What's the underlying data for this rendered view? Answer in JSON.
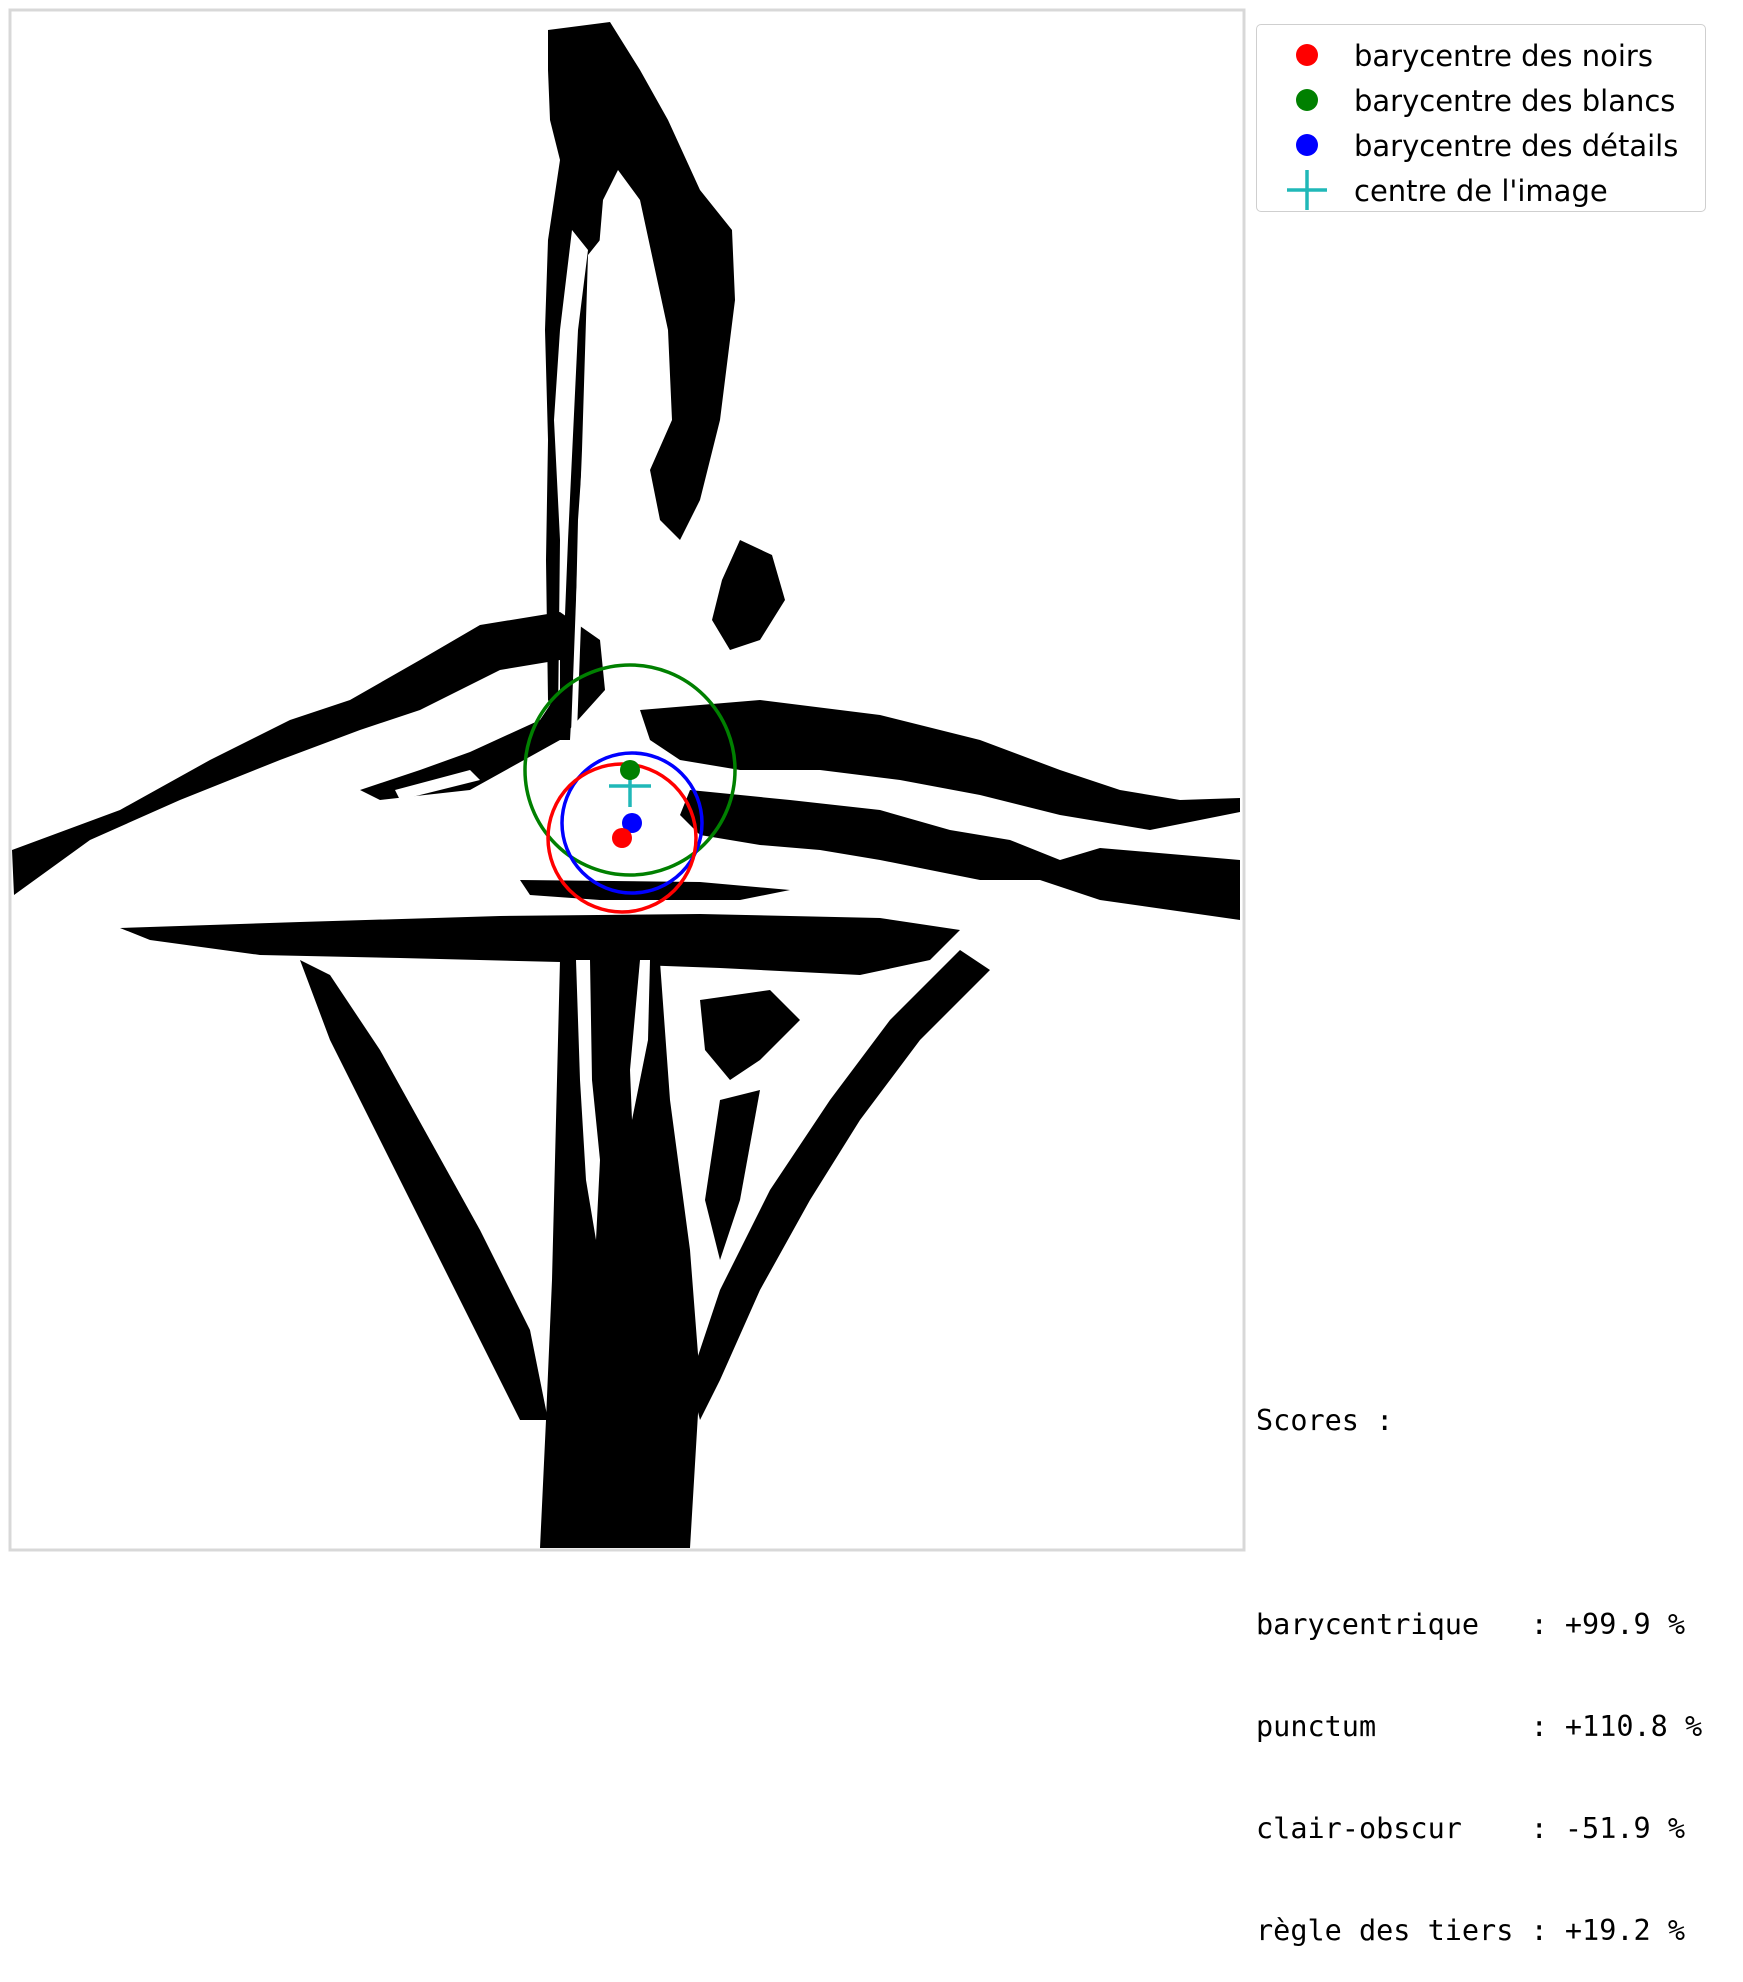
{
  "legend": {
    "items": [
      {
        "label": "barycentre des noirs",
        "color": "#ff0000",
        "marker": "dot"
      },
      {
        "label": "barycentre des blancs",
        "color": "#008000",
        "marker": "dot"
      },
      {
        "label": "barycentre des détails",
        "color": "#0000ff",
        "marker": "dot"
      },
      {
        "label": "centre de l'image",
        "color": "#20b8b8",
        "marker": "plus"
      }
    ]
  },
  "scores": {
    "title": "Scores :",
    "rows": [
      {
        "name": "barycentrique  ",
        "value": ": +99.9 %"
      },
      {
        "name": "punctum        ",
        "value": ": +110.8 %"
      },
      {
        "name": "clair-obscur   ",
        "value": ": -51.9 %"
      },
      {
        "name": "règle des tiers",
        "value": ": +19.2 %"
      }
    ]
  },
  "overlay": {
    "black_color": "#ff0000",
    "white_color": "#008000",
    "detail_color": "#0000ff",
    "center_color": "#20b8b8"
  }
}
